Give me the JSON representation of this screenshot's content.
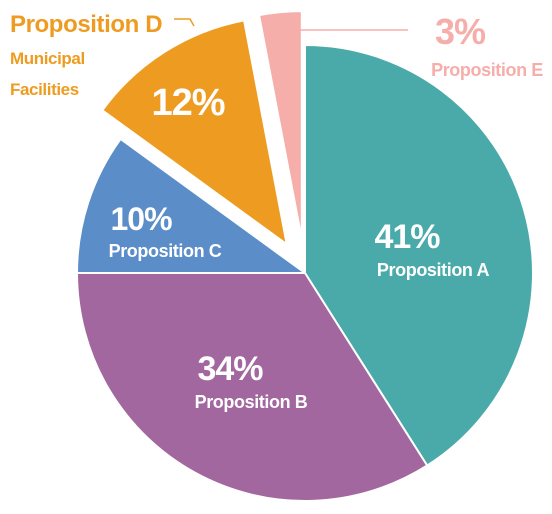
{
  "chart_data": {
    "type": "pie",
    "title": "",
    "slices": [
      {
        "value": 41,
        "value_label": "41%",
        "name": "Proposition A",
        "color": "#4aaaaa",
        "exploded": false
      },
      {
        "value": 34,
        "value_label": "34%",
        "name": "Proposition B",
        "color": "#a3679f",
        "exploded": false
      },
      {
        "value": 10,
        "value_label": "10%",
        "name": "Proposition C",
        "color": "#5b8dc9",
        "exploded": false
      },
      {
        "value": 12,
        "value_label": "12%",
        "name": "Proposition D",
        "subtitle_lines": [
          "Municipal",
          "Facilities"
        ],
        "color": "#ee9c21",
        "exploded": true
      },
      {
        "value": 3,
        "value_label": "3%",
        "name": "Proposition E",
        "color": "#f5aeaa",
        "exploded": true
      }
    ]
  }
}
